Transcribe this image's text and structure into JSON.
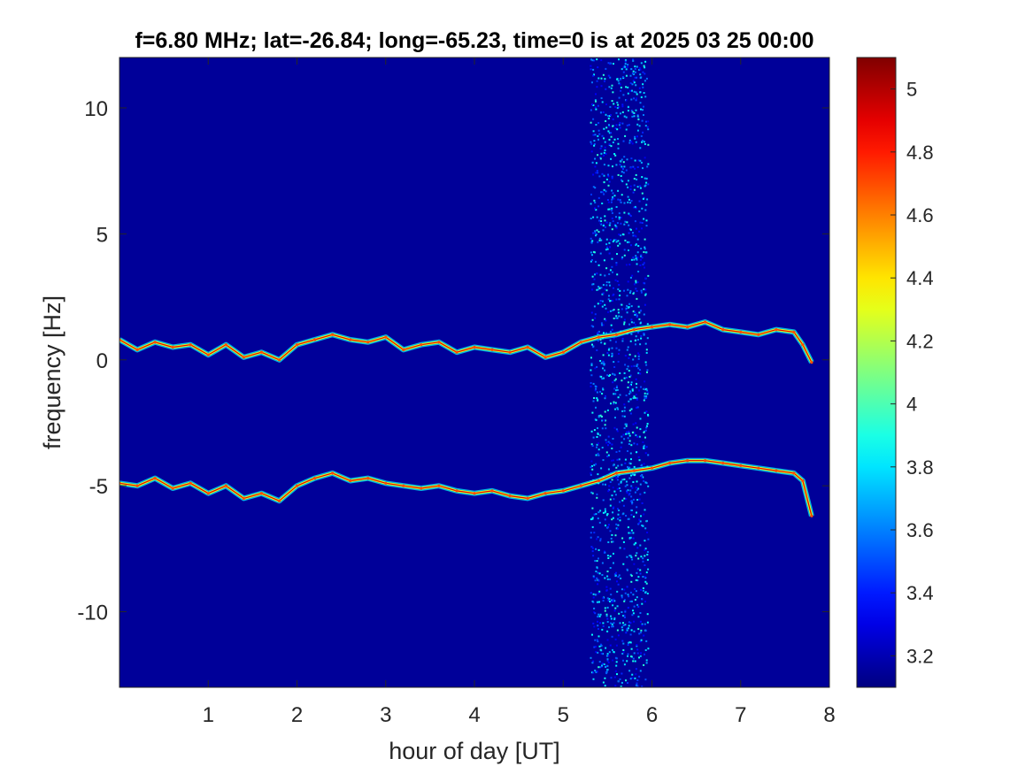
{
  "chart_data": {
    "type": "heatmap",
    "title": "f=6.80 MHz;  lat=-26.84; long=-65.23, time=0 is at 2025 03 25 00:00",
    "xlabel": "hour of day [UT]",
    "ylabel": "frequency [Hz]",
    "xlim": [
      0,
      8
    ],
    "ylim": [
      -13,
      12
    ],
    "xticks": [
      1,
      2,
      3,
      4,
      5,
      6,
      7,
      8
    ],
    "xtick_labels": [
      "1",
      "2",
      "3",
      "4",
      "5",
      "6",
      "7",
      "8"
    ],
    "yticks": [
      10,
      5,
      0,
      -5,
      -10
    ],
    "ytick_labels": [
      "10",
      "5",
      "0",
      "-5",
      "-10"
    ],
    "colormap": "jet",
    "clim": [
      3.1,
      5.1
    ],
    "colorbar_ticks": [
      5,
      4.8,
      4.6,
      4.4,
      4.2,
      4,
      3.8,
      3.6,
      3.4,
      3.2
    ],
    "colorbar_tick_labels": [
      "5",
      "4.8",
      "4.6",
      "4.4",
      "4.2",
      "4",
      "3.8",
      "3.6",
      "3.4",
      "3.2"
    ],
    "background_level": 3.15,
    "noise_band_hours": [
      5.3,
      5.95
    ],
    "series": [
      {
        "x": [
          0,
          0.2,
          0.4,
          0.6,
          0.8,
          1.0,
          1.2,
          1.4,
          1.6,
          1.8,
          2.0,
          2.2,
          2.4,
          2.6,
          2.8,
          3.0,
          3.2,
          3.4,
          3.6,
          3.8,
          4.0,
          4.2,
          4.4,
          4.6,
          4.8,
          5.0,
          5.2,
          5.4,
          5.6,
          5.8,
          6.0,
          6.2,
          6.4,
          6.6,
          6.8,
          7.0,
          7.2,
          7.4,
          7.6,
          7.7,
          7.8
        ],
        "y": [
          0.8,
          0.4,
          0.7,
          0.5,
          0.6,
          0.2,
          0.6,
          0.1,
          0.3,
          0.0,
          0.6,
          0.8,
          1.0,
          0.8,
          0.7,
          0.9,
          0.4,
          0.6,
          0.7,
          0.3,
          0.5,
          0.4,
          0.3,
          0.5,
          0.1,
          0.3,
          0.7,
          0.9,
          1.0,
          1.2,
          1.3,
          1.4,
          1.3,
          1.5,
          1.2,
          1.1,
          1.0,
          1.2,
          1.1,
          0.6,
          -0.1
        ]
      },
      {
        "x": [
          0,
          0.2,
          0.4,
          0.6,
          0.8,
          1.0,
          1.2,
          1.4,
          1.6,
          1.8,
          2.0,
          2.2,
          2.4,
          2.6,
          2.8,
          3.0,
          3.2,
          3.4,
          3.6,
          3.8,
          4.0,
          4.2,
          4.4,
          4.6,
          4.8,
          5.0,
          5.2,
          5.4,
          5.6,
          5.8,
          6.0,
          6.2,
          6.4,
          6.6,
          6.8,
          7.0,
          7.2,
          7.4,
          7.6,
          7.7,
          7.8
        ],
        "y": [
          -4.9,
          -5.0,
          -4.7,
          -5.1,
          -4.9,
          -5.3,
          -5.0,
          -5.5,
          -5.3,
          -5.6,
          -5.0,
          -4.7,
          -4.5,
          -4.8,
          -4.7,
          -4.9,
          -5.0,
          -5.1,
          -5.0,
          -5.2,
          -5.3,
          -5.2,
          -5.4,
          -5.5,
          -5.3,
          -5.2,
          -5.0,
          -4.8,
          -4.5,
          -4.4,
          -4.3,
          -4.1,
          -4.0,
          -4.0,
          -4.1,
          -4.2,
          -4.3,
          -4.4,
          -4.5,
          -4.8,
          -6.2
        ]
      }
    ]
  }
}
